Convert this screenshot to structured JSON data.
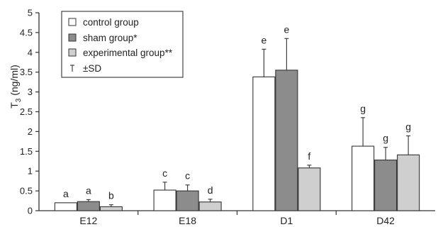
{
  "chart_data": {
    "type": "bar",
    "ylabel": {
      "main": "T",
      "sub": "3",
      "rest": " (ng/ml)"
    },
    "ylim": [
      0,
      5
    ],
    "yticks": [
      0,
      0.5,
      1,
      1.5,
      2,
      2.5,
      3,
      3.5,
      4,
      4.5,
      5
    ],
    "ytick_labels": [
      "0",
      "0.5",
      "1",
      "1.5",
      "2",
      "2.5",
      "3",
      "3.5",
      "4",
      "4.5",
      "5"
    ],
    "categories": [
      "E12",
      "E18",
      "D1",
      "D42"
    ],
    "series": [
      {
        "name": "control group",
        "color": "#ffffff",
        "values": [
          0.2,
          0.52,
          3.38,
          1.63
        ],
        "sd": [
          0.0,
          0.2,
          0.7,
          0.72
        ],
        "labels": [
          "a",
          "c",
          "e",
          "g"
        ]
      },
      {
        "name": "sham group*",
        "color": "#8c8c8c",
        "values": [
          0.23,
          0.5,
          3.55,
          1.28
        ],
        "sd": [
          0.05,
          0.15,
          0.8,
          0.32
        ],
        "labels": [
          "a",
          "c",
          "e",
          "g"
        ]
      },
      {
        "name": "experimental group**",
        "color": "#cfcfcf",
        "values": [
          0.1,
          0.22,
          1.08,
          1.41
        ],
        "sd": [
          0.05,
          0.07,
          0.07,
          0.48
        ],
        "labels": [
          "b",
          "d",
          "f",
          "g"
        ]
      }
    ],
    "legend": {
      "position": "top-left",
      "entries": [
        "control group",
        "sham group*",
        "experimental group**",
        "±SD"
      ]
    },
    "grid": false
  }
}
